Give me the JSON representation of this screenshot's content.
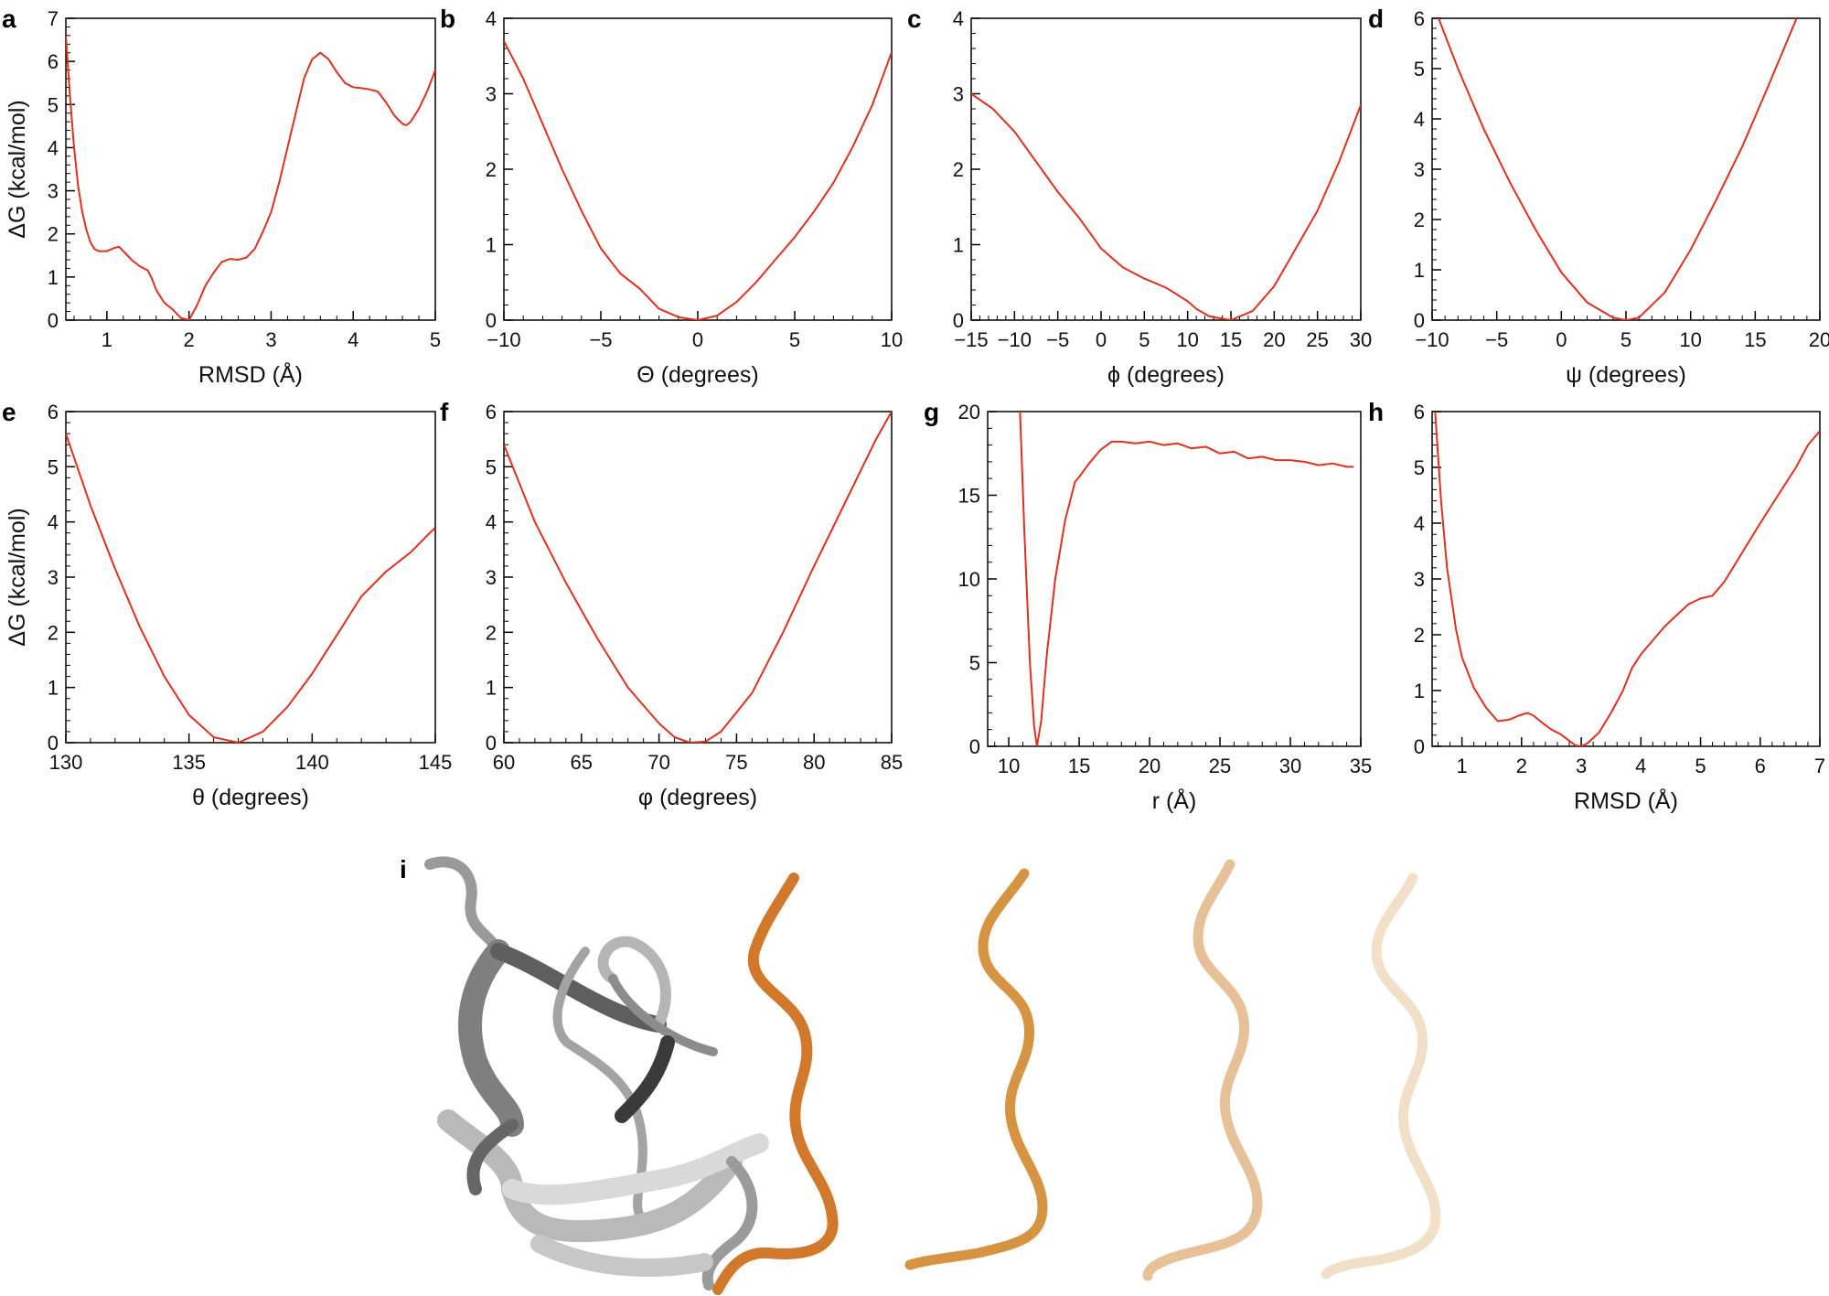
{
  "figure": {
    "panel_i_label": "i",
    "colors": {
      "curve": "#e0301e",
      "axis": "#000000",
      "protein": "#a8a8a8",
      "peptide": "#d2782a"
    }
  },
  "chart_data": [
    {
      "panel": "a",
      "type": "line",
      "xlabel": "RMSD (Å)",
      "ylabel": "ΔG (kcal/mol)",
      "xlim": [
        0.5,
        5
      ],
      "ylim": [
        0,
        7
      ],
      "xticks": [
        1,
        2,
        3,
        4,
        5
      ],
      "xtick_labels": [
        "1",
        "2",
        "3",
        "4",
        "5"
      ],
      "yticks": [
        0,
        1,
        2,
        3,
        4,
        5,
        6,
        7
      ],
      "ytick_labels": [
        "0",
        "1",
        "2",
        "3",
        "4",
        "5",
        "6",
        "7"
      ],
      "x": [
        0.5,
        0.55,
        0.6,
        0.65,
        0.7,
        0.75,
        0.8,
        0.85,
        0.9,
        1.0,
        1.1,
        1.15,
        1.2,
        1.3,
        1.4,
        1.5,
        1.55,
        1.6,
        1.7,
        1.8,
        1.9,
        2.0,
        2.1,
        2.2,
        2.3,
        2.4,
        2.5,
        2.6,
        2.7,
        2.8,
        2.9,
        3.0,
        3.1,
        3.2,
        3.3,
        3.4,
        3.5,
        3.6,
        3.7,
        3.8,
        3.9,
        4.0,
        4.1,
        4.2,
        4.3,
        4.4,
        4.5,
        4.6,
        4.65,
        4.7,
        4.8,
        4.9,
        5.0
      ],
      "y": [
        6.6,
        5.2,
        4.0,
        3.1,
        2.5,
        2.1,
        1.8,
        1.65,
        1.6,
        1.6,
        1.68,
        1.7,
        1.6,
        1.4,
        1.25,
        1.15,
        0.95,
        0.7,
        0.4,
        0.25,
        0.05,
        0.0,
        0.35,
        0.8,
        1.1,
        1.35,
        1.42,
        1.4,
        1.45,
        1.65,
        2.05,
        2.5,
        3.2,
        4.0,
        4.8,
        5.6,
        6.05,
        6.2,
        6.05,
        5.75,
        5.5,
        5.4,
        5.38,
        5.35,
        5.3,
        5.05,
        4.75,
        4.55,
        4.52,
        4.6,
        4.9,
        5.3,
        5.8
      ]
    },
    {
      "panel": "b",
      "type": "line",
      "xlabel": "Θ (degrees)",
      "ylabel": "",
      "xlim": [
        -10,
        10
      ],
      "ylim": [
        0,
        4
      ],
      "xticks": [
        -10,
        -5,
        0,
        5,
        10
      ],
      "xtick_labels": [
        "−10",
        "−5",
        "0",
        "5",
        "10"
      ],
      "yticks": [
        0,
        1,
        2,
        3,
        4
      ],
      "ytick_labels": [
        "0",
        "1",
        "2",
        "3",
        "4"
      ],
      "x": [
        -10,
        -9,
        -8,
        -7,
        -6,
        -5,
        -4,
        -3,
        -2,
        -1,
        0,
        1,
        2,
        3,
        4,
        5,
        6,
        7,
        8,
        9,
        10
      ],
      "y": [
        3.7,
        3.2,
        2.6,
        2.0,
        1.45,
        0.95,
        0.62,
        0.42,
        0.15,
        0.04,
        0.0,
        0.06,
        0.24,
        0.5,
        0.8,
        1.1,
        1.44,
        1.82,
        2.3,
        2.85,
        3.55
      ]
    },
    {
      "panel": "c",
      "type": "line",
      "xlabel": "ϕ (degrees)",
      "ylabel": "",
      "xlim": [
        -15,
        30
      ],
      "ylim": [
        0,
        4
      ],
      "xticks": [
        -15,
        -10,
        -5,
        0,
        5,
        10,
        15,
        20,
        25,
        30
      ],
      "xtick_labels": [
        "−15",
        "−10",
        "−5",
        "0",
        "5",
        "10",
        "15",
        "20",
        "25",
        "30"
      ],
      "yticks": [
        0,
        1,
        2,
        3,
        4
      ],
      "ytick_labels": [
        "0",
        "1",
        "2",
        "3",
        "4"
      ],
      "x": [
        -15,
        -12.5,
        -10,
        -7.5,
        -5,
        -2.5,
        0,
        2.5,
        5,
        7.5,
        10,
        11,
        12.5,
        14,
        15,
        17.5,
        20,
        22.5,
        25,
        27.5,
        30
      ],
      "y": [
        3.0,
        2.8,
        2.5,
        2.1,
        1.7,
        1.35,
        0.95,
        0.7,
        0.55,
        0.43,
        0.25,
        0.15,
        0.05,
        0.02,
        0.0,
        0.12,
        0.45,
        0.95,
        1.45,
        2.1,
        2.85
      ]
    },
    {
      "panel": "d",
      "type": "line",
      "xlabel": "ψ (degrees)",
      "ylabel": "",
      "xlim": [
        -10,
        20
      ],
      "ylim": [
        0,
        6
      ],
      "xticks": [
        -10,
        -5,
        0,
        5,
        10,
        15,
        20
      ],
      "xtick_labels": [
        "−10",
        "−5",
        "0",
        "5",
        "10",
        "15",
        "20"
      ],
      "yticks": [
        0,
        1,
        2,
        3,
        4,
        5,
        6
      ],
      "ytick_labels": [
        "0",
        "1",
        "2",
        "3",
        "4",
        "5",
        "6"
      ],
      "x": [
        -9.5,
        -8,
        -6,
        -4,
        -2,
        0,
        2,
        4,
        5,
        6,
        8,
        10,
        12,
        14,
        16,
        18.2
      ],
      "y": [
        6.0,
        5.0,
        3.8,
        2.75,
        1.8,
        0.95,
        0.35,
        0.05,
        0.0,
        0.05,
        0.55,
        1.4,
        2.4,
        3.45,
        4.65,
        6.0
      ]
    },
    {
      "panel": "e",
      "type": "line",
      "xlabel": "θ (degrees)",
      "ylabel": "ΔG (kcal/mol)",
      "xlim": [
        130,
        145
      ],
      "ylim": [
        0,
        6
      ],
      "xticks": [
        130,
        135,
        140,
        145
      ],
      "xtick_labels": [
        "130",
        "135",
        "140",
        "145"
      ],
      "yticks": [
        0,
        1,
        2,
        3,
        4,
        5,
        6
      ],
      "ytick_labels": [
        "0",
        "1",
        "2",
        "3",
        "4",
        "5",
        "6"
      ],
      "x": [
        130,
        131,
        132,
        133,
        134,
        135,
        136,
        137,
        138,
        139,
        140,
        141,
        142,
        143,
        144,
        145
      ],
      "y": [
        5.6,
        4.3,
        3.15,
        2.1,
        1.2,
        0.5,
        0.1,
        0.0,
        0.2,
        0.65,
        1.25,
        1.95,
        2.65,
        3.1,
        3.45,
        3.9
      ]
    },
    {
      "panel": "f",
      "type": "line",
      "xlabel": "φ (degrees)",
      "ylabel": "",
      "xlim": [
        60,
        85
      ],
      "ylim": [
        0,
        6
      ],
      "xticks": [
        60,
        65,
        70,
        75,
        80,
        85
      ],
      "xtick_labels": [
        "60",
        "65",
        "70",
        "75",
        "80",
        "85"
      ],
      "yticks": [
        0,
        1,
        2,
        3,
        4,
        5,
        6
      ],
      "ytick_labels": [
        "0",
        "1",
        "2",
        "3",
        "4",
        "5",
        "6"
      ],
      "x": [
        60,
        62,
        64,
        66,
        68,
        70,
        71,
        72,
        73,
        74,
        76,
        78,
        80,
        82,
        84,
        85
      ],
      "y": [
        5.4,
        4.0,
        2.9,
        1.9,
        1.0,
        0.35,
        0.1,
        0.0,
        0.02,
        0.2,
        0.9,
        2.0,
        3.2,
        4.35,
        5.5,
        6.0
      ]
    },
    {
      "panel": "g",
      "type": "line",
      "xlabel": "r (Å)",
      "ylabel": "",
      "xlim": [
        8.5,
        35
      ],
      "ylim": [
        0,
        20
      ],
      "xticks": [
        10,
        15,
        20,
        25,
        30,
        35
      ],
      "xtick_labels": [
        "10",
        "15",
        "20",
        "25",
        "30",
        "35"
      ],
      "yticks": [
        0,
        5,
        10,
        15,
        20
      ],
      "ytick_labels": [
        "0",
        "5",
        "10",
        "15",
        "20"
      ],
      "x": [
        10.8,
        11.1,
        11.5,
        11.8,
        12.0,
        12.3,
        12.7,
        13.3,
        14.0,
        14.7,
        15.0,
        15.7,
        16.5,
        17.3,
        18.0,
        19.0,
        20.0,
        21.0,
        22.0,
        23.0,
        24.0,
        25.0,
        26.0,
        27.0,
        28.0,
        29.0,
        30.0,
        31.0,
        32.0,
        33.0,
        34.0,
        34.5
      ],
      "y": [
        20.0,
        13.0,
        5.0,
        1.2,
        0.0,
        1.5,
        5.5,
        10.0,
        13.5,
        15.8,
        16.1,
        16.9,
        17.7,
        18.2,
        18.2,
        18.1,
        18.2,
        18.0,
        18.1,
        17.8,
        17.9,
        17.5,
        17.6,
        17.2,
        17.3,
        17.1,
        17.1,
        17.0,
        16.8,
        16.9,
        16.7,
        16.7
      ]
    },
    {
      "panel": "h",
      "type": "line",
      "xlabel": "RMSD (Å)",
      "ylabel": "",
      "xlim": [
        0.5,
        7
      ],
      "ylim": [
        0,
        6
      ],
      "xticks": [
        1,
        2,
        3,
        4,
        5,
        6,
        7
      ],
      "xtick_labels": [
        "1",
        "2",
        "3",
        "4",
        "5",
        "6",
        "7"
      ],
      "yticks": [
        0,
        1,
        2,
        3,
        4,
        5,
        6
      ],
      "ytick_labels": [
        "0",
        "1",
        "2",
        "3",
        "4",
        "5",
        "6"
      ],
      "x": [
        0.55,
        0.65,
        0.75,
        0.9,
        1.0,
        1.2,
        1.4,
        1.6,
        1.8,
        1.95,
        2.1,
        2.2,
        2.35,
        2.5,
        2.65,
        2.8,
        2.9,
        3.0,
        3.1,
        3.3,
        3.5,
        3.7,
        3.85,
        4.0,
        4.2,
        4.4,
        4.6,
        4.8,
        5.0,
        5.2,
        5.4,
        5.6,
        5.8,
        6.0,
        6.3,
        6.6,
        6.8,
        7.0
      ],
      "y": [
        6.0,
        4.4,
        3.2,
        2.1,
        1.6,
        1.05,
        0.7,
        0.45,
        0.48,
        0.55,
        0.6,
        0.55,
        0.42,
        0.3,
        0.22,
        0.1,
        0.02,
        0.0,
        0.05,
        0.25,
        0.6,
        1.0,
        1.4,
        1.65,
        1.9,
        2.15,
        2.35,
        2.55,
        2.65,
        2.7,
        2.95,
        3.3,
        3.65,
        4.0,
        4.5,
        5.0,
        5.4,
        5.65
      ]
    }
  ]
}
